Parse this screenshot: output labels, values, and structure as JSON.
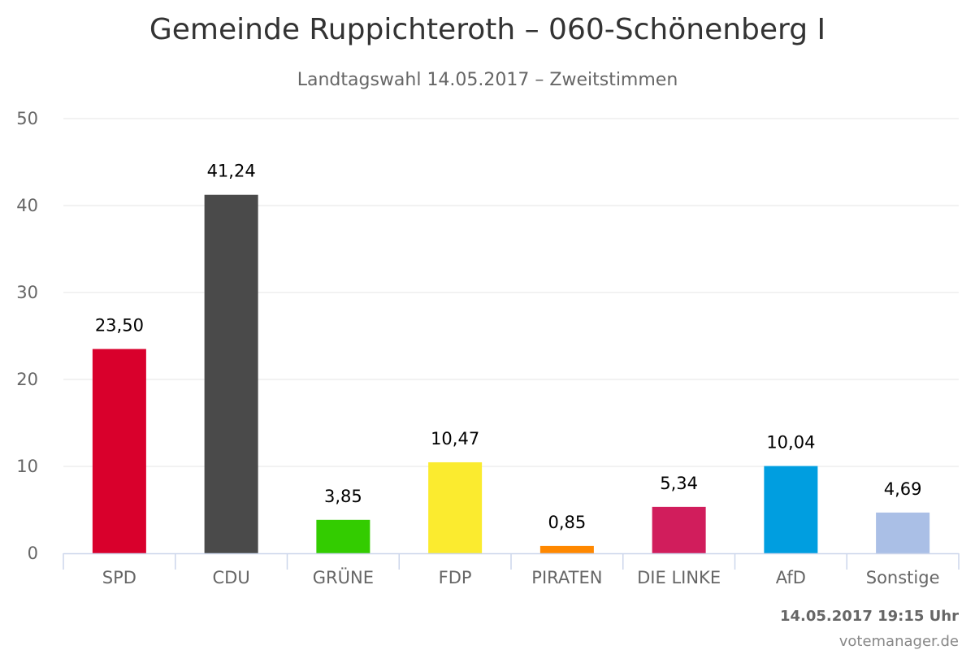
{
  "chart_data": {
    "type": "bar",
    "title": "Gemeinde Ruppichteroth – 060-Schönenberg I",
    "subtitle": "Landtagswahl 14.05.2017 – Zweitstimmen",
    "categories": [
      "SPD",
      "CDU",
      "GRÜNE",
      "FDP",
      "PIRATEN",
      "DIE LINKE",
      "AfD",
      "Sonstige"
    ],
    "values": [
      23.5,
      41.24,
      3.85,
      10.47,
      0.85,
      5.34,
      10.04,
      4.69
    ],
    "value_labels": [
      "23,50",
      "41,24",
      "3,85",
      "10,47",
      "0,85",
      "5,34",
      "10,04",
      "4,69"
    ],
    "colors": [
      "#d9002c",
      "#4a4a4a",
      "#33cc00",
      "#fbeb2f",
      "#ff8800",
      "#d11d5c",
      "#009ee0",
      "#aabfe6"
    ],
    "ylim": [
      0,
      50
    ],
    "yticks": [
      0,
      10,
      20,
      30,
      40,
      50
    ],
    "grid": true,
    "xlabel": "",
    "ylabel": ""
  },
  "footer": {
    "date": "14.05.2017 19:15 Uhr",
    "credit": "votemanager.de"
  }
}
